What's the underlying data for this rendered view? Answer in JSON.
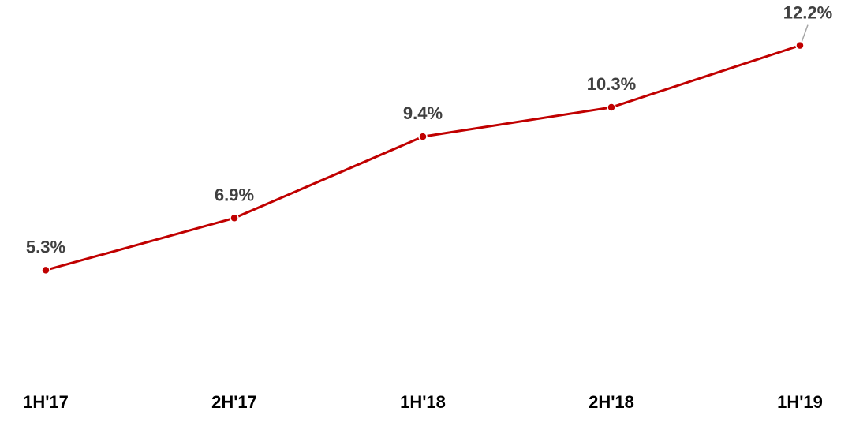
{
  "chart_data": {
    "type": "line",
    "categories": [
      "1H'17",
      "2H'17",
      "1H'18",
      "2H'18",
      "1H'19"
    ],
    "series": [
      {
        "values": [
          5.3,
          6.9,
          9.4,
          10.3,
          12.2
        ],
        "data_labels": [
          "5.3%",
          "6.9%",
          "9.4%",
          "10.3%",
          "12.2%"
        ]
      }
    ],
    "title": "",
    "xlabel": "",
    "ylabel": "",
    "ylim": [
      0,
      13.5
    ],
    "grid": false,
    "legend": "none",
    "colors": {
      "line": "#c00000",
      "data_label": "#404040",
      "tick_label": "#000000",
      "leader_line": "#a6a6a6"
    }
  }
}
